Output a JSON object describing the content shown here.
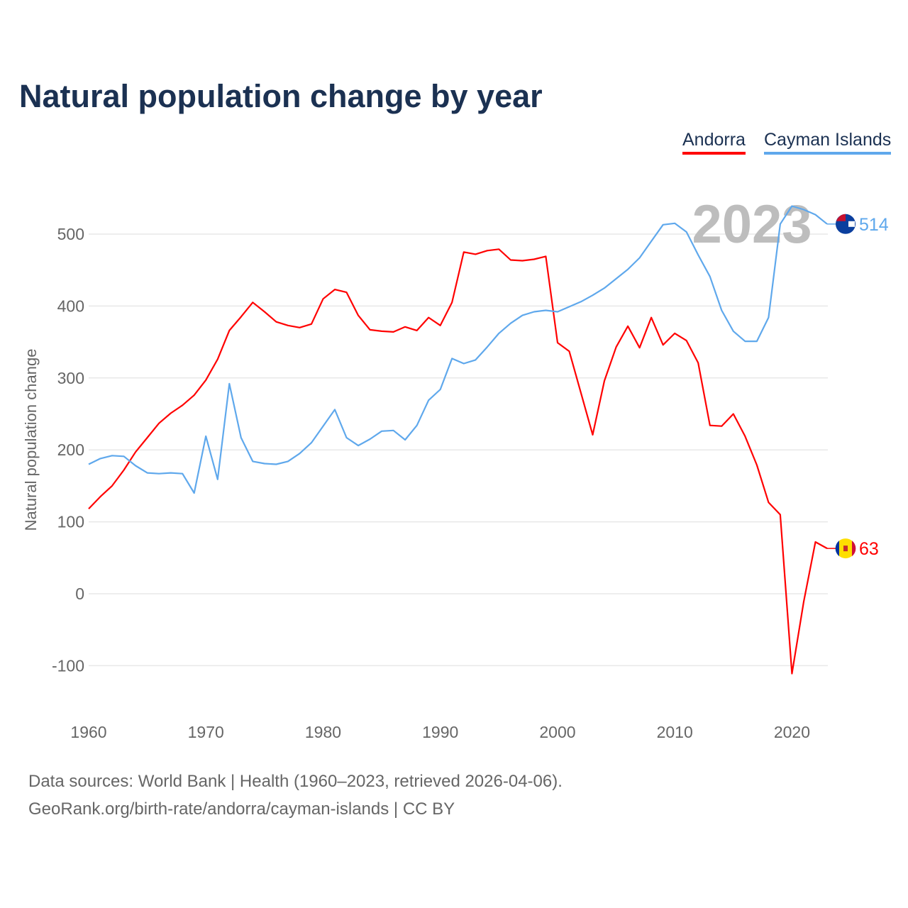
{
  "title": "Natural population change by year",
  "legend": [
    "Andorra",
    "Cayman Islands"
  ],
  "footer": {
    "line1": "Data sources: World Bank | Health (1960–2023, retrieved 2026-04-06).",
    "line2": "GeoRank.org/birth-rate/andorra/cayman-islands | CC BY"
  },
  "chart_data": {
    "type": "line",
    "title": "Natural population change by year",
    "xlabel": "",
    "ylabel": "Natural population change",
    "year_watermark": "2023",
    "xlim": [
      1960,
      2023
    ],
    "ylim": [
      -160,
      560
    ],
    "xticks": [
      1960,
      1970,
      1980,
      1990,
      2000,
      2010,
      2020
    ],
    "yticks": [
      -100,
      0,
      100,
      200,
      300,
      400,
      500
    ],
    "grid": true,
    "legend_position": "top-right",
    "x_start": 1960,
    "series": [
      {
        "name": "Andorra",
        "color": "#ff0000",
        "end_label": "63",
        "values": [
          118,
          135,
          150,
          172,
          197,
          217,
          237,
          251,
          262,
          276,
          297,
          326,
          366,
          385,
          405,
          392,
          378,
          373,
          370,
          375,
          410,
          423,
          419,
          387,
          367,
          365,
          364,
          371,
          366,
          384,
          373,
          405,
          475,
          472,
          477,
          479,
          464,
          463,
          465,
          469,
          349,
          337,
          279,
          221,
          296,
          343,
          372,
          342,
          384,
          346,
          362,
          352,
          321,
          234,
          233,
          250,
          219,
          179,
          127,
          110,
          -111,
          -11,
          72,
          63
        ]
      },
      {
        "name": "Cayman Islands",
        "color": "#5fa8ec",
        "end_label": "514",
        "values": [
          180,
          188,
          192,
          191,
          178,
          168,
          167,
          168,
          167,
          140,
          219,
          159,
          292,
          217,
          184,
          181,
          180,
          184,
          195,
          210,
          233,
          256,
          217,
          206,
          215,
          226,
          227,
          214,
          234,
          269,
          284,
          327,
          320,
          325,
          343,
          362,
          376,
          387,
          392,
          394,
          392,
          399,
          406,
          415,
          425,
          438,
          451,
          467,
          490,
          513,
          515,
          503,
          471,
          441,
          394,
          365,
          351,
          351,
          384,
          514,
          539,
          534,
          527,
          514
        ]
      }
    ]
  }
}
